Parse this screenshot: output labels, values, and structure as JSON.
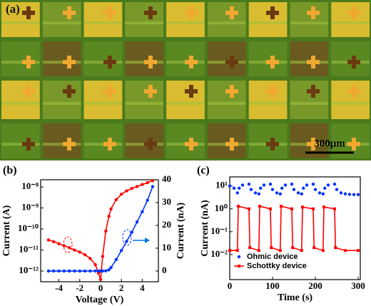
{
  "micrograph": {
    "panel_label": "(a)",
    "scale_bar": "300μm"
  },
  "chart_data": [
    {
      "type": "line",
      "panel_label": "(b)",
      "xlabel": "Voltage (V)",
      "ylabel": "Current (A)",
      "y2label": "Current (nA)",
      "xlim": [
        -5.75,
        5.55
      ],
      "xticks": [
        -4,
        -2,
        0,
        2,
        4
      ],
      "log_y": true,
      "ylim": [
        3.1e-13,
        2.2e-08
      ],
      "yticks": [
        {
          "value": 1e-12,
          "label": "10⁻¹²"
        },
        {
          "value": 1e-11,
          "label": "10⁻¹¹"
        },
        {
          "value": 1e-10,
          "label": "10⁻¹⁰"
        },
        {
          "value": 1e-09,
          "label": "10⁻⁹"
        },
        {
          "value": 1e-08,
          "label": "10⁻⁸"
        }
      ],
      "y2lim": [
        -4.7,
        40
      ],
      "y2ticks": [
        0,
        10,
        20,
        30,
        40
      ],
      "x": [
        -5,
        -4.5,
        -4,
        -3.5,
        -3,
        -2.5,
        -2,
        -1.5,
        -1,
        -0.5,
        -0.2,
        0,
        0.2,
        0.5,
        0.8,
        1,
        1.5,
        2,
        2.5,
        3,
        3.5,
        4,
        4.5,
        5
      ],
      "series": [
        {
          "color": "#ff0000",
          "marker": "circle",
          "connect": true,
          "values": [
            3e-11,
            2.5e-11,
            2e-11,
            1.6e-11,
            1.3e-11,
            1e-11,
            8e-12,
            6e-12,
            4e-12,
            2e-12,
            8e-13,
            4e-13,
            5e-12,
            8e-11,
            4e-10,
            9e-10,
            2.5e-09,
            4.5e-09,
            6.5e-09,
            8.5e-09,
            1.05e-08,
            1.3e-08,
            1.6e-08,
            2e-08
          ]
        },
        {
          "color": "#0033ff",
          "marker": "circle",
          "connect": true,
          "axis": "y2",
          "values": [
            0,
            0,
            0,
            0,
            0,
            0,
            0,
            0,
            0,
            0,
            0,
            0,
            0,
            0.1,
            0.5,
            1.5,
            5,
            9,
            13,
            17,
            21.5,
            26,
            31,
            37
          ]
        }
      ]
    },
    {
      "type": "line",
      "panel_label": "(c)",
      "xlabel": "Time (s)",
      "ylabel": "Current (nA)",
      "xlim": [
        0,
        305
      ],
      "xticks": [
        0,
        100,
        200,
        300
      ],
      "log_y": true,
      "ylim": [
        0.0008,
        25
      ],
      "yticks": [
        {
          "value": 0.01,
          "label": "10⁻²"
        },
        {
          "value": 0.1,
          "label": "10⁻¹"
        },
        {
          "value": 1,
          "label": "10⁰"
        },
        {
          "value": 10,
          "label": "10¹"
        }
      ],
      "legend": "lower left",
      "series": [
        {
          "name": "Ohmic device",
          "color": "#0033ff",
          "marker": "circle",
          "connect": false,
          "x": [
            0,
            10,
            18,
            22,
            30,
            45,
            50,
            60,
            68,
            72,
            80,
            95,
            100,
            110,
            118,
            122,
            130,
            145,
            150,
            160,
            168,
            172,
            180,
            195,
            200,
            210,
            218,
            222,
            230,
            245,
            250,
            260,
            270,
            280,
            290,
            300
          ],
          "values": [
            10,
            8,
            5,
            8,
            11,
            12,
            7,
            5,
            4.5,
            8,
            11,
            12,
            7,
            5,
            4.5,
            8,
            11,
            12,
            7,
            5,
            4.5,
            8,
            11,
            12,
            7,
            5,
            4.5,
            8,
            11,
            12,
            7,
            5,
            4.5,
            4.3,
            4.2,
            4.2
          ]
        },
        {
          "name": "Schottky device",
          "color": "#ff0000",
          "marker": "square",
          "connect": true,
          "x": [
            0,
            18,
            20,
            45,
            47,
            68,
            70,
            95,
            97,
            118,
            120,
            145,
            147,
            168,
            170,
            195,
            197,
            218,
            220,
            245,
            247,
            270,
            300
          ],
          "values": [
            0.015,
            0.015,
            1.3,
            1.0,
            0.02,
            0.015,
            1.3,
            1.0,
            0.02,
            0.015,
            1.3,
            1.0,
            0.02,
            0.015,
            1.2,
            1.0,
            0.02,
            0.015,
            1.2,
            1.0,
            0.02,
            0.015,
            0.015
          ]
        }
      ]
    }
  ]
}
